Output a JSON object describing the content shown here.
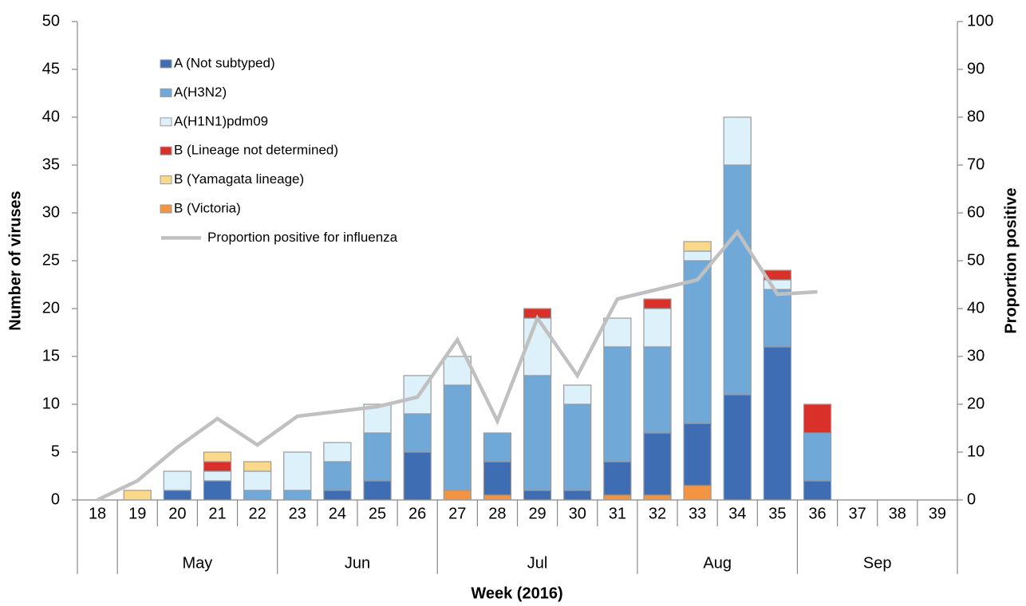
{
  "chart_data": {
    "type": "bar",
    "ylabel": "Number of viruses",
    "y2label": "Proportion positive",
    "xlabel": "Week (2016)",
    "categories": [
      "18",
      "19",
      "20",
      "21",
      "22",
      "23",
      "24",
      "25",
      "26",
      "27",
      "28",
      "29",
      "30",
      "31",
      "32",
      "33",
      "34",
      "35",
      "36",
      "37",
      "38",
      "39"
    ],
    "months": [
      null,
      "May",
      "May",
      "May",
      "May",
      "Jun",
      "Jun",
      "Jun",
      "Jun",
      "Jul",
      "Jul",
      "Jul",
      "Jul",
      "Jul",
      "Aug",
      "Aug",
      "Aug",
      "Aug",
      "Sep",
      "Sep",
      "Sep",
      "Sep"
    ],
    "ylim": [
      0,
      50
    ],
    "yticks": [
      0,
      5,
      10,
      15,
      20,
      25,
      30,
      35,
      40,
      45,
      50
    ],
    "y2lim": [
      0,
      100
    ],
    "y2ticks": [
      0,
      10,
      20,
      30,
      40,
      50,
      60,
      70,
      80,
      90,
      100
    ],
    "series": [
      {
        "name": "A (Not subtyped)",
        "color": "#3e6db4",
        "values": [
          0,
          0,
          1,
          2,
          0,
          0,
          1,
          2,
          5,
          0,
          3.5,
          1,
          1,
          3.5,
          6.5,
          6.5,
          11,
          16,
          2,
          0,
          0,
          0
        ]
      },
      {
        "name": "A(H3N2)",
        "color": "#70a9d8",
        "values": [
          0,
          0,
          0,
          0,
          1,
          1,
          3,
          5,
          4,
          11,
          3,
          12,
          9,
          12,
          9,
          17,
          24,
          6,
          5,
          0,
          0,
          0
        ]
      },
      {
        "name": "A(H1N1)pdm09",
        "color": "#ddf1fa",
        "values": [
          0,
          0,
          2,
          1,
          2,
          4,
          2,
          3,
          4,
          3,
          0,
          6,
          2,
          3,
          4,
          1,
          5,
          1,
          0,
          0,
          0,
          0
        ]
      },
      {
        "name": "B (Lineage not determined)",
        "color": "#d9302a",
        "values": [
          0,
          0,
          0,
          1,
          0,
          0,
          0,
          0,
          0,
          0,
          0,
          1,
          0,
          0,
          1,
          0,
          0,
          1,
          3,
          0,
          0,
          0
        ]
      },
      {
        "name": "B (Yamagata lineage)",
        "color": "#fbd98b",
        "values": [
          0,
          1,
          0,
          1,
          1,
          0,
          0,
          0,
          0,
          0,
          0,
          0,
          0,
          0,
          0,
          1,
          0,
          0,
          0,
          0,
          0,
          0
        ]
      },
      {
        "name": "B (Victoria)",
        "color": "#f29441",
        "values": [
          0,
          0,
          0,
          0,
          0,
          0,
          0,
          0,
          0,
          1,
          0.5,
          0,
          0,
          0.5,
          0.5,
          1.5,
          0,
          0,
          0,
          0,
          0,
          0
        ]
      },
      {
        "name": "Proportion positive for influenza",
        "type": "line",
        "axis": "y2",
        "color": "#c0c0c0",
        "values": [
          0,
          4,
          11,
          17,
          11.5,
          17.5,
          18.5,
          19.5,
          21.5,
          33.5,
          16.5,
          38,
          26,
          42,
          44,
          46,
          56,
          43,
          43.5,
          null,
          null,
          null
        ]
      }
    ]
  }
}
